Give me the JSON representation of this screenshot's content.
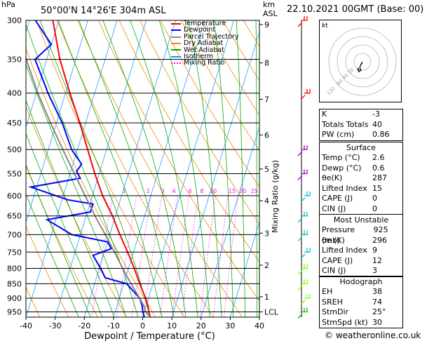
{
  "header": {
    "hpa": "hPa",
    "location": "50°00'N  14°26'E  304m  ASL",
    "km": "km",
    "asl": "ASL",
    "datetime": "22.10.2021  00GMT  (Base: 00)"
  },
  "legend": [
    {
      "label": "Temperature",
      "color": "#ff0000"
    },
    {
      "label": "Dewpoint",
      "color": "#0000ff"
    },
    {
      "label": "Parcel Trajectory",
      "color": "#888888"
    },
    {
      "label": "Dry Adiabat",
      "color": "#ff8c00"
    },
    {
      "label": "Wet Adiabat",
      "color": "#00a000"
    },
    {
      "label": "Isotherm",
      "color": "#00a0ff"
    },
    {
      "label": "Mixing Ratio",
      "color": "#ff00ff"
    }
  ],
  "axes": {
    "pressure_levels": [
      300,
      350,
      400,
      450,
      500,
      550,
      600,
      650,
      700,
      750,
      800,
      850,
      900,
      950
    ],
    "pressure_labels": [
      "300",
      "350",
      "400",
      "450",
      "500",
      "550",
      "600",
      "650",
      "700",
      "750",
      "800",
      "850",
      "900",
      "950"
    ],
    "temp_ticks": [
      -40,
      -30,
      -20,
      -10,
      0,
      10,
      20,
      30,
      40
    ],
    "temp_labels": [
      "-40",
      "-30",
      "-20",
      "-10",
      "0",
      "10",
      "20",
      "30",
      "40"
    ],
    "xlabel": "Dewpoint / Temperature (°C)",
    "ylabel_right": "Mixing Ratio (g/kg)",
    "km_labels": [
      "9",
      "8",
      "7",
      "6",
      "5",
      "4",
      "3",
      "2",
      "1",
      "LCL"
    ],
    "mixing_labels": [
      "1",
      "2",
      "3",
      "4",
      "6",
      "8",
      "10",
      "15",
      "20",
      "25"
    ]
  },
  "chart_data": {
    "type": "line",
    "title": "Skew-T log-P diagram",
    "xlabel": "Dewpoint / Temperature (°C)",
    "ylabel": "hPa",
    "xlim": [
      -40,
      40
    ],
    "ylim": [
      1000,
      300
    ],
    "series": [
      {
        "name": "Temperature",
        "color": "#ff0000",
        "p": [
          970,
          950,
          925,
          900,
          850,
          800,
          750,
          700,
          650,
          600,
          550,
          500,
          450,
          400,
          350,
          300
        ],
        "t": [
          2.6,
          1.5,
          0.5,
          -1.0,
          -4.5,
          -8.0,
          -12.0,
          -16.5,
          -21.0,
          -26.5,
          -31.5,
          -36.5,
          -42.0,
          -48.5,
          -55.5,
          -62.0
        ]
      },
      {
        "name": "Dewpoint",
        "color": "#0000ff",
        "p": [
          970,
          950,
          925,
          900,
          850,
          830,
          800,
          760,
          740,
          720,
          700,
          660,
          640,
          620,
          610,
          580,
          560,
          545,
          530,
          500,
          450,
          400,
          350,
          330,
          300
        ],
        "t": [
          0.6,
          -0.5,
          -1.5,
          -3.0,
          -9.0,
          -17.0,
          -19.5,
          -23.5,
          -18.0,
          -20.0,
          -33.0,
          -43.0,
          -29.0,
          -29.0,
          -38.0,
          -52.0,
          -36.0,
          -38.0,
          -37.0,
          -42.0,
          -48.0,
          -56.0,
          -64.0,
          -60.0,
          -68.0
        ]
      },
      {
        "name": "Parcel Trajectory",
        "color": "#888888",
        "p": [
          970,
          950,
          925,
          900,
          850,
          800,
          750,
          700,
          650,
          600,
          550,
          500,
          450,
          400,
          350,
          300
        ],
        "t": [
          2.6,
          0.5,
          -1.0,
          -3.0,
          -7.5,
          -12.0,
          -16.5,
          -21.5,
          -27.0,
          -32.5,
          -38.5,
          -45.0,
          -52.0,
          -59.5,
          -67.0,
          -75.0
        ]
      }
    ],
    "mixing_ratio_lines": [
      1,
      2,
      3,
      4,
      6,
      8,
      10,
      15,
      20,
      25
    ]
  },
  "wind_barbs": [
    {
      "p": 300,
      "color": "#ff0000"
    },
    {
      "p": 400,
      "color": "#ff0000"
    },
    {
      "p": 500,
      "color": "#a000c0"
    },
    {
      "p": 550,
      "color": "#a000c0"
    },
    {
      "p": 600,
      "color": "#00c0c0"
    },
    {
      "p": 650,
      "color": "#00c0c0"
    },
    {
      "p": 700,
      "color": "#00c0c0"
    },
    {
      "p": 750,
      "color": "#00c0c0"
    },
    {
      "p": 800,
      "color": "#80ff00"
    },
    {
      "p": 850,
      "color": "#80ff00"
    },
    {
      "p": 900,
      "color": "#80ff00"
    },
    {
      "p": 950,
      "color": "#00c000"
    }
  ],
  "hodograph": {
    "unit": "kt",
    "ring_labels": [
      "20",
      "40",
      "60",
      "120"
    ]
  },
  "indices": {
    "rows": [
      {
        "k": "K",
        "v": "-3"
      },
      {
        "k": "Totals Totals",
        "v": "40"
      },
      {
        "k": "PW (cm)",
        "v": "0.86"
      }
    ]
  },
  "surface": {
    "title": "Surface",
    "rows": [
      {
        "k": "Temp (°C)",
        "v": "2.6"
      },
      {
        "k": "Dewp (°C)",
        "v": "0.6"
      },
      {
        "k": "θe(K)",
        "v": "287"
      },
      {
        "k": "Lifted Index",
        "v": "15"
      },
      {
        "k": "CAPE (J)",
        "v": "0"
      },
      {
        "k": "CIN (J)",
        "v": "0"
      }
    ]
  },
  "most_unstable": {
    "title": "Most Unstable",
    "rows": [
      {
        "k": "Pressure (mb)",
        "v": "925"
      },
      {
        "k": "θe (K)",
        "v": "296"
      },
      {
        "k": "Lifted Index",
        "v": "9"
      },
      {
        "k": "CAPE (J)",
        "v": "12"
      },
      {
        "k": "CIN (J)",
        "v": "3"
      }
    ]
  },
  "hodograph_box": {
    "title": "Hodograph",
    "rows": [
      {
        "k": "EH",
        "v": "38"
      },
      {
        "k": "SREH",
        "v": "74"
      },
      {
        "k": "StmDir",
        "v": "25°"
      },
      {
        "k": "StmSpd (kt)",
        "v": "30"
      }
    ]
  },
  "footer": {
    "copyright": "© weatheronline.co.uk"
  }
}
